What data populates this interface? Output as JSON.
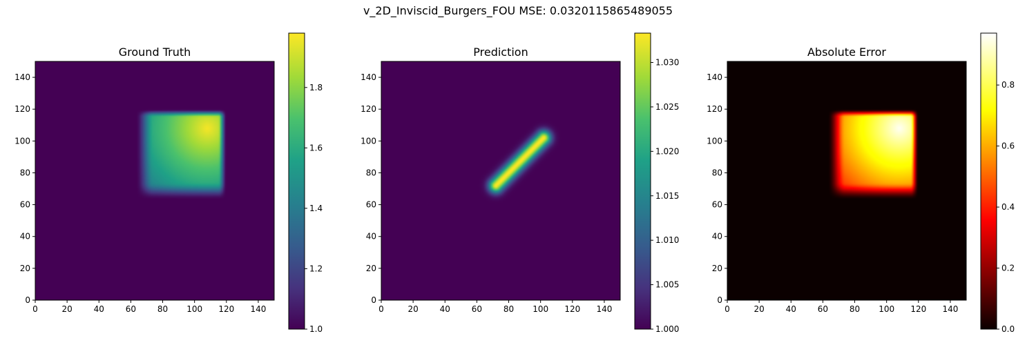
{
  "figure": {
    "suptitle": "v_2D_Inviscid_Burgers_FOU MSE: 0.0320115865489055"
  },
  "chart_data": [
    {
      "type": "heatmap",
      "title": "Ground Truth",
      "colormap": "viridis",
      "xlim": [
        0,
        150
      ],
      "ylim": [
        0,
        150
      ],
      "xticks": [
        "0",
        "20",
        "40",
        "60",
        "80",
        "100",
        "120",
        "140"
      ],
      "yticks": [
        "0",
        "20",
        "40",
        "60",
        "80",
        "100",
        "120",
        "140"
      ],
      "colorbar": {
        "min": 1.0,
        "max": 1.98,
        "ticks": [
          "1.0",
          "1.2",
          "1.4",
          "1.6",
          "1.8"
        ]
      },
      "feature": {
        "shape": "rounded-square",
        "x_range": [
          65,
          118
        ],
        "y_range": [
          65,
          118
        ],
        "peak": [
          108,
          108
        ],
        "peak_value": 1.97,
        "background": 1.0
      }
    },
    {
      "type": "heatmap",
      "title": "Prediction",
      "colormap": "viridis",
      "xlim": [
        0,
        150
      ],
      "ylim": [
        0,
        150
      ],
      "xticks": [
        "0",
        "20",
        "40",
        "60",
        "80",
        "100",
        "120",
        "140"
      ],
      "yticks": [
        "0",
        "20",
        "40",
        "60",
        "80",
        "100",
        "120",
        "140"
      ],
      "colorbar": {
        "min": 1.0,
        "max": 1.0333,
        "ticks": [
          "1.000",
          "1.005",
          "1.010",
          "1.015",
          "1.020",
          "1.025",
          "1.030"
        ]
      },
      "feature": {
        "shape": "diagonal-ridge",
        "from": [
          72,
          72
        ],
        "to": [
          102,
          102
        ],
        "peak_value": 1.0333,
        "background": 1.0
      }
    },
    {
      "type": "heatmap",
      "title": "Absolute Error",
      "colormap": "hot",
      "xlim": [
        0,
        150
      ],
      "ylim": [
        0,
        150
      ],
      "xticks": [
        "0",
        "20",
        "40",
        "60",
        "80",
        "100",
        "120",
        "140"
      ],
      "yticks": [
        "0",
        "20",
        "40",
        "60",
        "80",
        "100",
        "120",
        "140"
      ],
      "colorbar": {
        "min": 0.0,
        "max": 0.97,
        "ticks": [
          "0.0",
          "0.2",
          "0.4",
          "0.6",
          "0.8"
        ]
      },
      "feature": {
        "shape": "rounded-square",
        "x_range": [
          65,
          118
        ],
        "y_range": [
          65,
          118
        ],
        "peak": [
          108,
          108
        ],
        "peak_value": 0.96,
        "background": 0.0
      }
    }
  ]
}
